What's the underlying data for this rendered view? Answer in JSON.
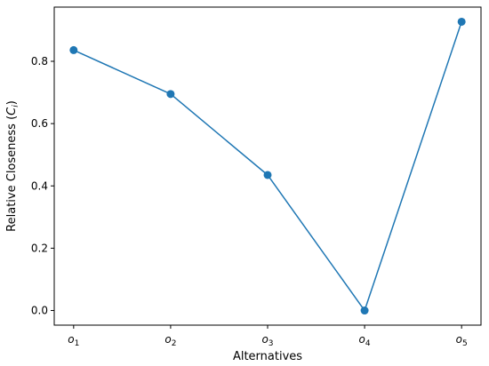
{
  "chart_data": {
    "type": "line",
    "title": "",
    "xlabel": "Alternatives",
    "ylabel": {
      "prefix": "Relative Closeness (",
      "var": "C",
      "sub": "i",
      "suffix": ")"
    },
    "categories": [
      {
        "base": "o",
        "sub": "1"
      },
      {
        "base": "o",
        "sub": "2"
      },
      {
        "base": "o",
        "sub": "3"
      },
      {
        "base": "o",
        "sub": "4"
      },
      {
        "base": "o",
        "sub": "5"
      }
    ],
    "series": [
      {
        "values": [
          0.836,
          0.695,
          0.435,
          0.0,
          0.927
        ],
        "color": "#1f77b4",
        "marker": "circle"
      }
    ],
    "ylim": [
      -0.047,
      0.974
    ],
    "yticks": [
      0.0,
      0.2,
      0.4,
      0.6,
      0.8
    ],
    "ytick_labels": [
      "0.0",
      "0.2",
      "0.4",
      "0.6",
      "0.8"
    ],
    "grid": false,
    "legend": "none"
  }
}
